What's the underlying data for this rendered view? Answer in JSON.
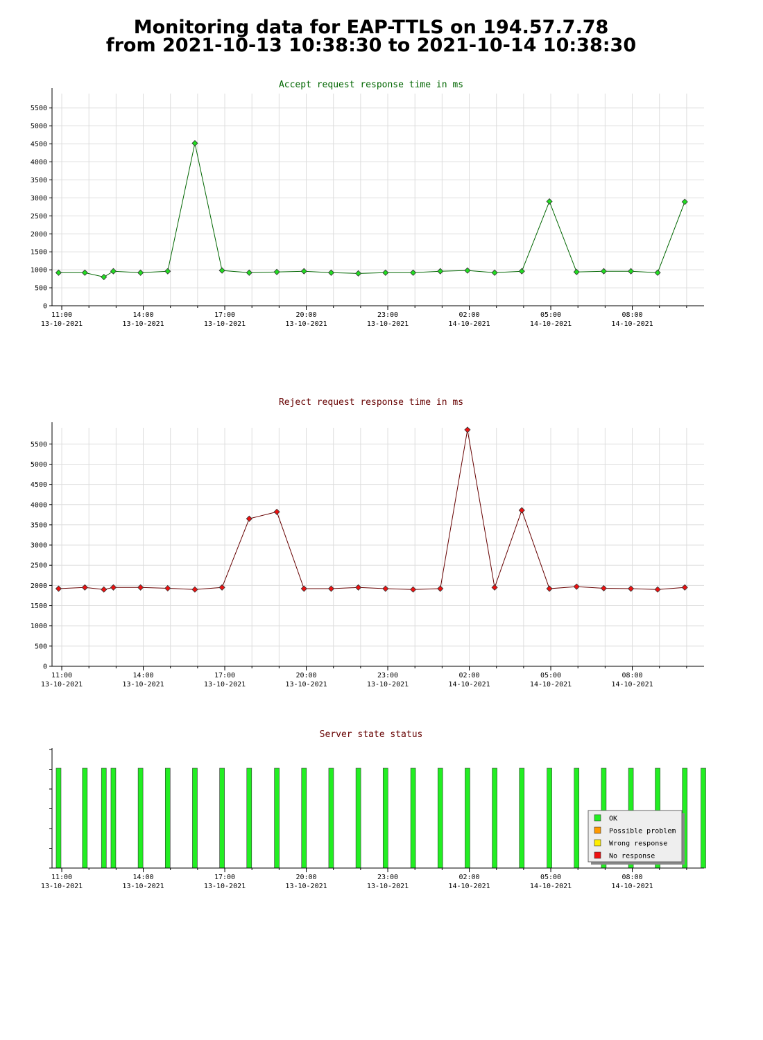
{
  "header": {
    "title_line1": "Monitoring data for EAP-TTLS on 194.57.7.78",
    "title_line2": "from 2021-10-13 10:38:30 to 2021-10-14 10:38:30"
  },
  "colors": {
    "accept_title": "#006600",
    "reject_title": "#660000",
    "status_title": "#660000",
    "accept_line": "#006600",
    "accept_marker": "#22dd22",
    "reject_line": "#660000",
    "reject_marker": "#ee1111",
    "grid": "#dddddd",
    "ok": "#22ee22",
    "possible_problem": "#ff9900",
    "wrong_response": "#ffee00",
    "no_response": "#ee1111"
  },
  "x_axis": {
    "tick_times": [
      "11:00",
      "14:00",
      "17:00",
      "20:00",
      "23:00",
      "02:00",
      "05:00",
      "08:00"
    ],
    "tick_dates": [
      "13-10-2021",
      "13-10-2021",
      "13-10-2021",
      "13-10-2021",
      "13-10-2021",
      "14-10-2021",
      "14-10-2021",
      "14-10-2021"
    ]
  },
  "chart_data": [
    {
      "type": "line",
      "title": "Accept request response time in ms",
      "xlim": [
        "2021-10-13 10:38:30",
        "2021-10-14 10:38:30"
      ],
      "ylim": [
        0,
        5900
      ],
      "yticks": [
        0,
        500,
        1000,
        1500,
        2000,
        2500,
        3000,
        3500,
        4000,
        4500,
        5000,
        5500
      ],
      "grid": true,
      "x": [
        "2021-10-13 10:53",
        "2021-10-13 11:51",
        "2021-10-13 12:33",
        "2021-10-13 12:54",
        "2021-10-13 13:54",
        "2021-10-13 14:54",
        "2021-10-13 15:54",
        "2021-10-13 16:54",
        "2021-10-13 17:54",
        "2021-10-13 18:55",
        "2021-10-13 19:55",
        "2021-10-13 20:55",
        "2021-10-13 21:55",
        "2021-10-13 22:55",
        "2021-10-13 23:56",
        "2021-10-14 00:56",
        "2021-10-14 01:56",
        "2021-10-14 02:56",
        "2021-10-14 03:56",
        "2021-10-14 04:57",
        "2021-10-14 05:57",
        "2021-10-14 06:57",
        "2021-10-14 07:57",
        "2021-10-14 08:56",
        "2021-10-14 09:56"
      ],
      "values": [
        920,
        920,
        800,
        960,
        920,
        960,
        4520,
        980,
        920,
        940,
        960,
        920,
        900,
        920,
        920,
        960,
        980,
        920,
        960,
        2900,
        940,
        960,
        960,
        920,
        2890
      ]
    },
    {
      "type": "line",
      "title": "Reject request response time in ms",
      "xlim": [
        "2021-10-13 10:38:30",
        "2021-10-14 10:38:30"
      ],
      "ylim": [
        0,
        5900
      ],
      "yticks": [
        0,
        500,
        1000,
        1500,
        2000,
        2500,
        3000,
        3500,
        4000,
        4500,
        5000,
        5500
      ],
      "grid": true,
      "x": [
        "2021-10-13 10:53",
        "2021-10-13 11:51",
        "2021-10-13 12:33",
        "2021-10-13 12:54",
        "2021-10-13 13:54",
        "2021-10-13 14:54",
        "2021-10-13 15:54",
        "2021-10-13 16:54",
        "2021-10-13 17:54",
        "2021-10-13 18:55",
        "2021-10-13 19:55",
        "2021-10-13 20:55",
        "2021-10-13 21:55",
        "2021-10-13 22:55",
        "2021-10-13 23:56",
        "2021-10-14 00:56",
        "2021-10-14 01:56",
        "2021-10-14 02:56",
        "2021-10-14 03:56",
        "2021-10-14 04:57",
        "2021-10-14 05:57",
        "2021-10-14 06:57",
        "2021-10-14 07:57",
        "2021-10-14 08:56",
        "2021-10-14 09:56"
      ],
      "values": [
        1920,
        1950,
        1900,
        1950,
        1950,
        1930,
        1900,
        1950,
        3650,
        3820,
        1920,
        1920,
        1950,
        1920,
        1900,
        1920,
        5850,
        1950,
        3860,
        1920,
        1970,
        1930,
        1920,
        1900,
        1950
      ]
    },
    {
      "type": "bar",
      "title": "Server state status",
      "xlim": [
        "2021-10-13 10:38:30",
        "2021-10-14 10:38:30"
      ],
      "x": [
        "2021-10-13 10:53",
        "2021-10-13 11:51",
        "2021-10-13 12:33",
        "2021-10-13 12:54",
        "2021-10-13 13:54",
        "2021-10-13 14:54",
        "2021-10-13 15:54",
        "2021-10-13 16:54",
        "2021-10-13 17:54",
        "2021-10-13 18:55",
        "2021-10-13 19:55",
        "2021-10-13 20:55",
        "2021-10-13 21:55",
        "2021-10-13 22:55",
        "2021-10-13 23:56",
        "2021-10-14 00:56",
        "2021-10-14 01:56",
        "2021-10-14 02:56",
        "2021-10-14 03:56",
        "2021-10-14 04:57",
        "2021-10-14 05:57",
        "2021-10-14 06:57",
        "2021-10-14 07:57",
        "2021-10-14 08:56",
        "2021-10-14 09:56",
        "2021-10-14 10:38"
      ],
      "states": [
        "OK",
        "OK",
        "OK",
        "OK",
        "OK",
        "OK",
        "OK",
        "OK",
        "OK",
        "OK",
        "OK",
        "OK",
        "OK",
        "OK",
        "OK",
        "OK",
        "OK",
        "OK",
        "OK",
        "OK",
        "OK",
        "OK",
        "OK",
        "OK",
        "OK",
        "OK"
      ],
      "legend_position": "bottom-right",
      "legend": [
        {
          "label": "OK",
          "color": "#22ee22"
        },
        {
          "label": "Possible problem",
          "color": "#ff9900"
        },
        {
          "label": "Wrong response",
          "color": "#ffee00"
        },
        {
          "label": "No response",
          "color": "#ee1111"
        }
      ]
    }
  ]
}
